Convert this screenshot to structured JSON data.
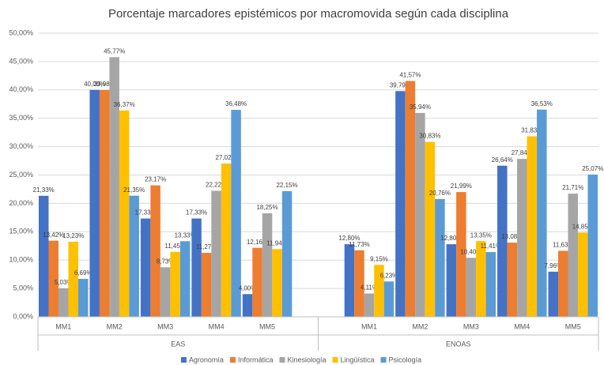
{
  "chart_data": {
    "type": "bar",
    "title": "Porcentaje marcadores epistémicos por macromovida según cada disciplina",
    "categories": [
      "MM1",
      "MM2",
      "MM3",
      "MM4",
      "MM5",
      "MM1",
      "MM2",
      "MM3",
      "MM4",
      "MM5"
    ],
    "groups": [
      "EAS",
      "ENOAS"
    ],
    "series": [
      {
        "name": "Agronomía",
        "color": "#4472c4",
        "values": [
          21.33,
          40.0,
          17.33,
          17.33,
          4.0,
          12.8,
          39.79,
          12.8,
          26.64,
          7.96
        ],
        "value_labels": [
          "21,33%",
          "40,00%",
          "17,33%",
          "17,33%",
          "4,00%",
          "12,80%",
          "39,79%",
          "12,80%",
          "26,64%",
          "7,96%"
        ]
      },
      {
        "name": "Informática",
        "color": "#ed7d31",
        "values": [
          13.42,
          39.98,
          23.17,
          11.27,
          12.16,
          11.73,
          41.57,
          21.99,
          13.08,
          11.63
        ],
        "value_labels": [
          "13,42%",
          "39,98%",
          "23,17%",
          "11,27%",
          "12,16%",
          "11,73%",
          "41,57%",
          "21,99%",
          "13,08%",
          "11,63%"
        ]
      },
      {
        "name": "Kinesiología",
        "color": "#a5a5a5",
        "values": [
          5.03,
          45.77,
          8.73,
          22.22,
          18.25,
          4.11,
          35.94,
          10.4,
          27.84,
          21.71
        ],
        "value_labels": [
          "5,03%",
          "45,77%",
          "8,73%",
          "22,22%",
          "18,25%",
          "4,11%",
          "35,94%",
          "10,40%",
          "27,84%",
          "21,71%"
        ]
      },
      {
        "name": "Lingüística",
        "color": "#ffc000",
        "values": [
          13.23,
          36.37,
          11.45,
          27.02,
          11.94,
          9.15,
          30.83,
          13.35,
          31.83,
          14.85
        ],
        "value_labels": [
          "13,23%",
          "36,37%",
          "11,45%",
          "27,02%",
          "11,94%",
          "9,15%",
          "30,83%",
          "13,35%",
          "31,83%",
          "14,85%"
        ]
      },
      {
        "name": "Psicología",
        "color": "#5b9bd5",
        "values": [
          6.69,
          21.35,
          13.33,
          36.48,
          22.15,
          6.23,
          20.76,
          11.41,
          36.53,
          25.07
        ],
        "value_labels": [
          "6,69%",
          "21,35%",
          "13,33%",
          "36,48%",
          "22,15%",
          "6,23%",
          "20,76%",
          "11,41%",
          "36,53%",
          "25,07%"
        ]
      }
    ],
    "ylim": [
      0,
      50
    ],
    "yticks": [
      {
        "value": 0,
        "label": "0,00%"
      },
      {
        "value": 5,
        "label": "5,00%"
      },
      {
        "value": 10,
        "label": "10,00%"
      },
      {
        "value": 15,
        "label": "15,00%"
      },
      {
        "value": 20,
        "label": "20,00%"
      },
      {
        "value": 25,
        "label": "25,00%"
      },
      {
        "value": 30,
        "label": "30,00%"
      },
      {
        "value": 35,
        "label": "35,00%"
      },
      {
        "value": 40,
        "label": "40,00%"
      },
      {
        "value": 45,
        "label": "45,00%"
      },
      {
        "value": 50,
        "label": "50,00%"
      }
    ],
    "grid": true,
    "legend": "bottom"
  }
}
